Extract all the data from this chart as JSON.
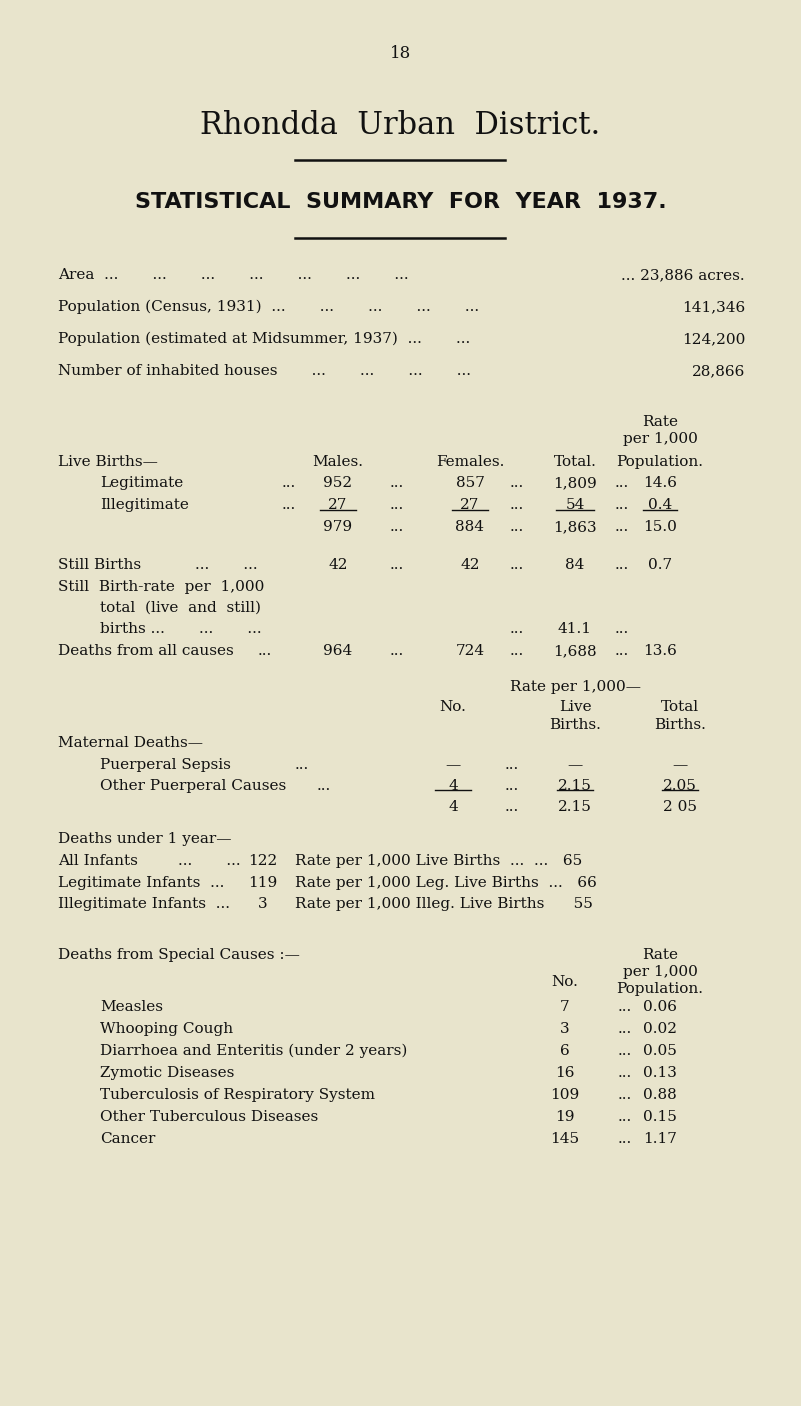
{
  "bg_color": "#e8e4cc",
  "text_color": "#111111",
  "page_number": "18",
  "title1": "Rhondda Urban District.",
  "title2": "STATISTICAL  SUMMARY  FOR  YEAR  1937.",
  "summary_items": [
    {
      "label": "Area  ...       ...       ...       ...       ...       ...       ...",
      "value": "... 23,886 acres."
    },
    {
      "label": "Population (Census, 1931)  ...       ...       ...       ...       ...",
      "value": "141,346"
    },
    {
      "label": "Population (estimated at Midsummer, 1937)  ...       ...",
      "value": "124,200"
    },
    {
      "label": "Number of inhabited houses       ...       ...       ...       ...",
      "value": "28,866"
    }
  ]
}
